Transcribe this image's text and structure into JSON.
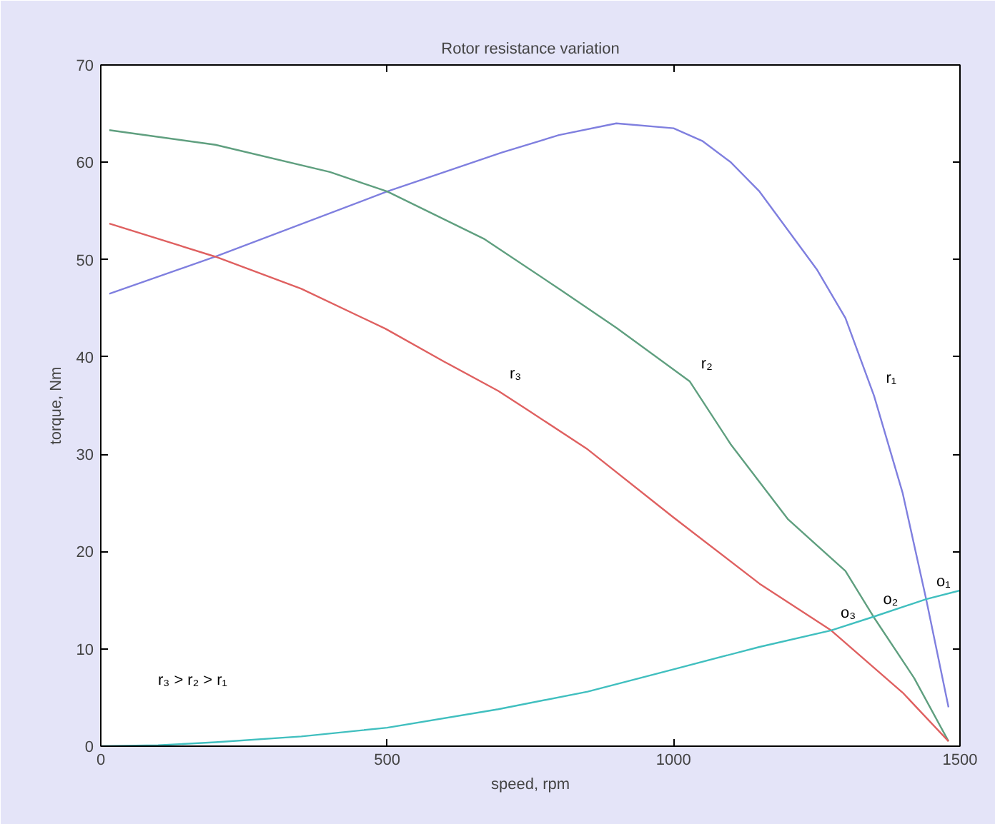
{
  "chart_data": {
    "type": "line",
    "title": "Rotor resistance variation",
    "xlabel": "speed, rpm",
    "ylabel": "torque, Nm",
    "xlim": [
      0,
      1500
    ],
    "ylim": [
      0,
      70
    ],
    "xticks": [
      0,
      500,
      1000,
      1500
    ],
    "yticks": [
      0,
      10,
      20,
      30,
      40,
      50,
      60,
      70
    ],
    "grid": false,
    "marker": "none",
    "line_style": "solid",
    "series": [
      {
        "color": "#7f7fdf",
        "x": [
          15,
          200,
          500,
          700,
          800,
          900,
          1000,
          1050,
          1100,
          1150,
          1200,
          1250,
          1300,
          1350,
          1400,
          1441,
          1480
        ],
        "values": [
          46.5,
          50.3,
          57,
          61,
          62.8,
          64,
          63.5,
          62.2,
          60,
          57,
          53,
          49,
          44,
          36,
          26,
          15.1,
          4
        ]
      },
      {
        "color": "#5f9f7f",
        "x": [
          15,
          200,
          400,
          500,
          670,
          800,
          900,
          1028,
          1100,
          1200,
          1300,
          1349,
          1420,
          1480
        ],
        "values": [
          63.3,
          61.8,
          59,
          57,
          52.1,
          47,
          43,
          37.5,
          31,
          23.3,
          18,
          13.3,
          7,
          0.5
        ]
      },
      {
        "color": "#df6060",
        "x": [
          15,
          200,
          350,
          497,
          600,
          694,
          744,
          850,
          1000,
          1150,
          1275,
          1400,
          1480
        ],
        "values": [
          53.7,
          50.3,
          47,
          42.9,
          39.5,
          36.5,
          34.6,
          30.5,
          23.5,
          16.7,
          11.9,
          5.5,
          0.5
        ]
      },
      {
        "color": "#40bfbf",
        "x": [
          0,
          100,
          200,
          350,
          500,
          694,
          850,
          1000,
          1150,
          1275,
          1349,
          1441,
          1500
        ],
        "values": [
          0,
          0.1,
          0.4,
          1,
          1.9,
          3.8,
          5.6,
          7.9,
          10.2,
          11.9,
          13.3,
          15.1,
          16
        ]
      }
    ],
    "annotations": [
      {
        "text": "r₃",
        "x": 694,
        "y": 36.5
      },
      {
        "text": "r₂",
        "x": 1028,
        "y": 37.5
      },
      {
        "text": "r₁",
        "x": 1350,
        "y": 36
      },
      {
        "text": "o₁",
        "x": 1441,
        "y": 15.1
      },
      {
        "text": "o₂",
        "x": 1349,
        "y": 13.3
      },
      {
        "text": "o₃",
        "x": 1275,
        "y": 11.9
      },
      "r₃ > r₂ > r₁"
    ]
  }
}
